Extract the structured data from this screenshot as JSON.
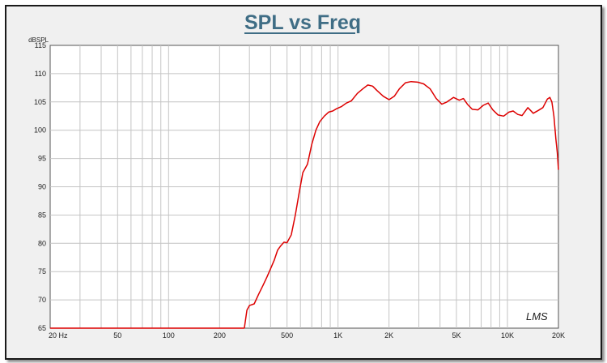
{
  "chart_data": {
    "type": "line",
    "title": "SPL vs Freq",
    "ylabel": "dBSPL",
    "xlabel": "",
    "x_scale": "log",
    "xlim": [
      20,
      20000
    ],
    "ylim": [
      65,
      115
    ],
    "grid": true,
    "yticks": [
      65,
      70,
      75,
      80,
      85,
      90,
      95,
      100,
      105,
      110,
      115
    ],
    "xtick_labels": [
      {
        "value": 20,
        "label": "20  Hz"
      },
      {
        "value": 50,
        "label": "50"
      },
      {
        "value": 100,
        "label": "100"
      },
      {
        "value": 200,
        "label": "200"
      },
      {
        "value": 500,
        "label": "500"
      },
      {
        "value": 1000,
        "label": "1K"
      },
      {
        "value": 2000,
        "label": "2K"
      },
      {
        "value": 5000,
        "label": "5K"
      },
      {
        "value": 10000,
        "label": "10K"
      },
      {
        "value": 20000,
        "label": "20K"
      }
    ],
    "watermark": "LMS",
    "series": [
      {
        "color": "#dd0000",
        "points": [
          [
            280,
            65.0
          ],
          [
            290,
            68.2
          ],
          [
            300,
            69.0
          ],
          [
            320,
            69.3
          ],
          [
            340,
            71.0
          ],
          [
            360,
            72.5
          ],
          [
            380,
            74.0
          ],
          [
            400,
            75.5
          ],
          [
            420,
            77.0
          ],
          [
            440,
            78.8
          ],
          [
            460,
            79.6
          ],
          [
            480,
            80.2
          ],
          [
            500,
            80.1
          ],
          [
            530,
            81.5
          ],
          [
            560,
            85.0
          ],
          [
            590,
            89.0
          ],
          [
            620,
            92.5
          ],
          [
            660,
            94.0
          ],
          [
            700,
            97.5
          ],
          [
            740,
            100.0
          ],
          [
            780,
            101.5
          ],
          [
            830,
            102.5
          ],
          [
            880,
            103.2
          ],
          [
            930,
            103.4
          ],
          [
            980,
            103.8
          ],
          [
            1050,
            104.2
          ],
          [
            1120,
            104.8
          ],
          [
            1200,
            105.2
          ],
          [
            1300,
            106.5
          ],
          [
            1400,
            107.3
          ],
          [
            1500,
            108.0
          ],
          [
            1600,
            107.8
          ],
          [
            1700,
            107.0
          ],
          [
            1850,
            106.0
          ],
          [
            2000,
            105.4
          ],
          [
            2150,
            106.0
          ],
          [
            2300,
            107.3
          ],
          [
            2500,
            108.4
          ],
          [
            2700,
            108.6
          ],
          [
            2950,
            108.5
          ],
          [
            3200,
            108.2
          ],
          [
            3500,
            107.3
          ],
          [
            3800,
            105.6
          ],
          [
            4100,
            104.6
          ],
          [
            4400,
            105.0
          ],
          [
            4800,
            105.8
          ],
          [
            5200,
            105.3
          ],
          [
            5500,
            105.6
          ],
          [
            5800,
            104.6
          ],
          [
            6200,
            103.7
          ],
          [
            6700,
            103.6
          ],
          [
            7200,
            104.4
          ],
          [
            7700,
            104.8
          ],
          [
            8200,
            103.6
          ],
          [
            8800,
            102.7
          ],
          [
            9500,
            102.5
          ],
          [
            10200,
            103.2
          ],
          [
            10800,
            103.4
          ],
          [
            11500,
            102.8
          ],
          [
            12200,
            102.6
          ],
          [
            13200,
            104.0
          ],
          [
            14200,
            103.0
          ],
          [
            15200,
            103.5
          ],
          [
            16200,
            104.0
          ],
          [
            17200,
            105.5
          ],
          [
            17800,
            105.8
          ],
          [
            18300,
            105.0
          ],
          [
            18800,
            102.5
          ],
          [
            19300,
            98.5
          ],
          [
            19700,
            96.0
          ],
          [
            20000,
            93.0
          ]
        ]
      }
    ]
  }
}
